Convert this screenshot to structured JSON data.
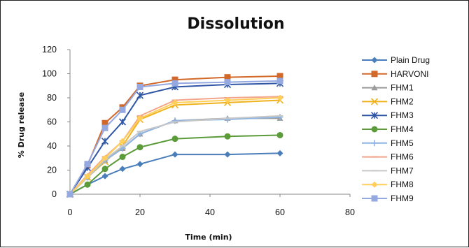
{
  "chart_data": {
    "type": "line",
    "title": "Dissolution",
    "xlabel": "Time (min)",
    "ylabel": "% Drug release",
    "x": [
      0,
      5,
      10,
      15,
      20,
      30,
      45,
      60
    ],
    "xlim": [
      0,
      80
    ],
    "ylim": [
      0,
      120
    ],
    "xticks": [
      0,
      20,
      40,
      60,
      80
    ],
    "yticks": [
      0,
      20,
      40,
      60,
      80,
      100,
      120
    ],
    "grid": false,
    "legend_position": "right",
    "series": [
      {
        "name": "Plain Drug",
        "color": "#4a7ebb",
        "marker": "diamond",
        "values": [
          0,
          8,
          15,
          21,
          25,
          33,
          33,
          34
        ]
      },
      {
        "name": "HARVONI",
        "color": "#d2692a",
        "marker": "square",
        "values": [
          0,
          24,
          59,
          72,
          90,
          95,
          97,
          98
        ]
      },
      {
        "name": "FHM1",
        "color": "#9b9b9b",
        "marker": "triangle",
        "values": [
          0,
          14,
          28,
          38,
          50,
          61,
          63,
          63
        ]
      },
      {
        "name": "FHM2",
        "color": "#f0b21c",
        "marker": "x",
        "values": [
          0,
          14,
          27,
          40,
          62,
          74,
          76,
          78
        ]
      },
      {
        "name": "FHM3",
        "color": "#2f56a6",
        "marker": "star",
        "values": [
          0,
          22,
          44,
          60,
          82,
          89,
          91,
          92
        ]
      },
      {
        "name": "FHM4",
        "color": "#5b9b3a",
        "marker": "circle",
        "values": [
          0,
          8,
          21,
          31,
          39,
          46,
          48,
          49
        ]
      },
      {
        "name": "FHM5",
        "color": "#8db4e2",
        "marker": "plus",
        "values": [
          0,
          14,
          28,
          38,
          50,
          61,
          62,
          64
        ]
      },
      {
        "name": "FHM6",
        "color": "#f2a58a",
        "marker": "dash",
        "values": [
          0,
          16,
          31,
          44,
          65,
          78,
          80,
          81
        ]
      },
      {
        "name": "FHM7",
        "color": "#c8c8c8",
        "marker": "dash",
        "values": [
          0,
          14,
          29,
          40,
          52,
          60,
          63,
          65
        ]
      },
      {
        "name": "FHM8",
        "color": "#ffcf59",
        "marker": "diamond",
        "values": [
          0,
          15,
          30,
          44,
          63,
          76,
          78,
          80
        ]
      },
      {
        "name": "FHM9",
        "color": "#95a8e0",
        "marker": "square",
        "values": [
          0,
          25,
          55,
          70,
          89,
          92,
          93,
          94
        ]
      }
    ]
  }
}
